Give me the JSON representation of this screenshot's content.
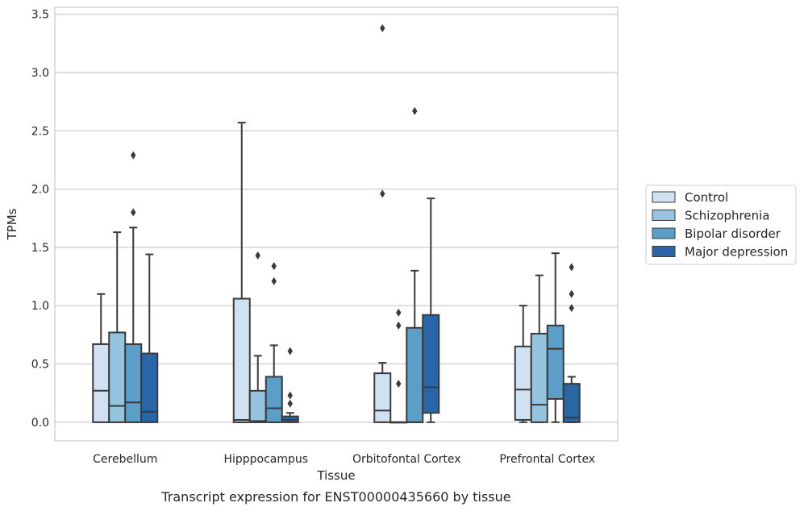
{
  "chart_data": {
    "type": "box",
    "caption": "Transcript expression for ENST00000435660 by tissue",
    "xlabel": "Tissue",
    "ylabel": "TPMs",
    "ylim": [
      -0.16,
      3.56
    ],
    "yticks": [
      "0.0",
      "0.5",
      "1.0",
      "1.5",
      "2.0",
      "2.5",
      "3.0",
      "3.5"
    ],
    "grid": "horizontal",
    "legend_position": "right",
    "categories": [
      "Cerebellum",
      "Hipppocampus",
      "Orbitofontal Cortex",
      "Prefrontal Cortex"
    ],
    "series": [
      {
        "name": "Control",
        "color": "#d0e1f2",
        "boxes": [
          {
            "whislo": 0.0,
            "q1": 0.0,
            "med": 0.27,
            "q3": 0.67,
            "whishi": 1.1,
            "fliers": []
          },
          {
            "whislo": 0.0,
            "q1": 0.0,
            "med": 0.02,
            "q3": 1.06,
            "whishi": 2.57,
            "fliers": []
          },
          {
            "whislo": 0.0,
            "q1": 0.0,
            "med": 0.1,
            "q3": 0.42,
            "whishi": 0.51,
            "fliers": [
              1.96,
              3.38
            ]
          },
          {
            "whislo": 0.0,
            "q1": 0.02,
            "med": 0.28,
            "q3": 0.65,
            "whishi": 1.0,
            "fliers": []
          }
        ]
      },
      {
        "name": "Schizophrenia",
        "color": "#94c4df",
        "boxes": [
          {
            "whislo": 0.0,
            "q1": 0.0,
            "med": 0.14,
            "q3": 0.77,
            "whishi": 1.63,
            "fliers": []
          },
          {
            "whislo": 0.0,
            "q1": 0.0,
            "med": 0.01,
            "q3": 0.27,
            "whishi": 0.57,
            "fliers": [
              1.43
            ]
          },
          {
            "whislo": 0.0,
            "q1": 0.0,
            "med": 0.0,
            "q3": 0.0,
            "whishi": 0.0,
            "fliers": [
              0.33,
              0.83,
              0.94
            ]
          },
          {
            "whislo": 0.0,
            "q1": 0.0,
            "med": 0.15,
            "q3": 0.76,
            "whishi": 1.26,
            "fliers": []
          }
        ]
      },
      {
        "name": "Bipolar disorder",
        "color": "#5a9ec9",
        "boxes": [
          {
            "whislo": 0.0,
            "q1": 0.0,
            "med": 0.17,
            "q3": 0.67,
            "whishi": 1.67,
            "fliers": [
              1.8,
              2.29
            ]
          },
          {
            "whislo": 0.0,
            "q1": 0.0,
            "med": 0.12,
            "q3": 0.39,
            "whishi": 0.66,
            "fliers": [
              1.21,
              1.34
            ]
          },
          {
            "whislo": 0.0,
            "q1": 0.0,
            "med": 0.0,
            "q3": 0.81,
            "whishi": 1.3,
            "fliers": [
              2.67
            ]
          },
          {
            "whislo": 0.0,
            "q1": 0.2,
            "med": 0.63,
            "q3": 0.83,
            "whishi": 1.45,
            "fliers": []
          }
        ]
      },
      {
        "name": "Major depression",
        "color": "#2966a8",
        "boxes": [
          {
            "whislo": 0.0,
            "q1": 0.0,
            "med": 0.09,
            "q3": 0.59,
            "whishi": 1.44,
            "fliers": []
          },
          {
            "whislo": 0.0,
            "q1": 0.0,
            "med": 0.02,
            "q3": 0.05,
            "whishi": 0.08,
            "fliers": [
              0.16,
              0.23,
              0.61
            ]
          },
          {
            "whislo": 0.0,
            "q1": 0.08,
            "med": 0.3,
            "q3": 0.92,
            "whishi": 1.92,
            "fliers": []
          },
          {
            "whislo": 0.0,
            "q1": 0.0,
            "med": 0.04,
            "q3": 0.33,
            "whishi": 0.39,
            "fliers": [
              0.98,
              1.1,
              1.33
            ]
          }
        ]
      }
    ]
  }
}
